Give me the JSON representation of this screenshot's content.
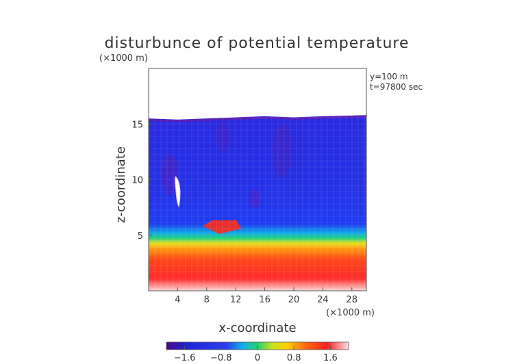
{
  "chart_data": {
    "type": "heatmap",
    "title": "disturbunce of potential temperature",
    "subtitle": "(×1000 m)",
    "xlabel": "x-coordinate",
    "ylabel": "z-coordinate",
    "x_unit": "(×1000 m)",
    "annotations": [
      "y=100 m",
      "t=97800 sec"
    ],
    "xlim": [
      0,
      30
    ],
    "ylim": [
      0,
      20
    ],
    "x_ticks": [
      4,
      8,
      12,
      16,
      20,
      24,
      28
    ],
    "y_ticks": [
      5,
      10,
      15
    ],
    "colorbar": {
      "range": [
        -2.0,
        2.0
      ],
      "ticks": [
        -1.6,
        -0.8,
        0,
        0.8,
        1.6
      ],
      "tick_labels": [
        "−1.6",
        "−0.8",
        "0",
        "0.8",
        "1.6"
      ]
    },
    "field_summary": {
      "domain_top_km": [
        15.5,
        15.4,
        15.5,
        15.6,
        15.7,
        15.6,
        15.7,
        15.8
      ],
      "domain_top_x": [
        0,
        4,
        8,
        12,
        16,
        20,
        24,
        30
      ],
      "inversion_height_km": 5.9,
      "near_surface_value": 2.0,
      "upper_layer_value": -1.4
    }
  }
}
